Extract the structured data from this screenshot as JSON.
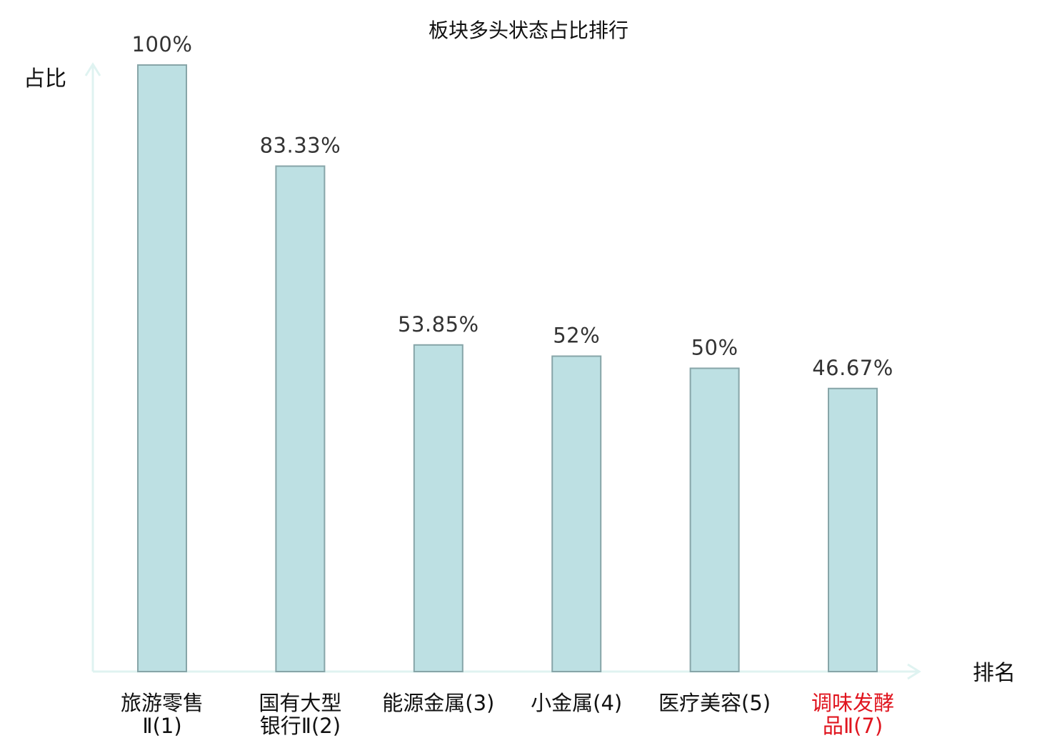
{
  "chart_data": {
    "type": "bar",
    "title": "板块多头状态占比排行",
    "ylabel": "占比",
    "xlabel": "排名",
    "ylim": [
      0,
      100
    ],
    "grid": false,
    "categories": [
      [
        "旅游零售",
        "Ⅱ(1)"
      ],
      [
        "国有大型",
        "银行Ⅱ(2)"
      ],
      [
        "能源金属(3)"
      ],
      [
        "小金属(4)"
      ],
      [
        "医疗美容(5)"
      ],
      [
        "调味发酵",
        "品Ⅱ(7)"
      ]
    ],
    "values": [
      100,
      83.33,
      53.85,
      52,
      50,
      46.67
    ],
    "value_labels": [
      "100%",
      "83.33%",
      "53.85%",
      "52%",
      "50%",
      "46.67%"
    ],
    "highlighted_category_index": 5
  },
  "colors": {
    "bar_fill": "#bde0e3",
    "bar_stroke": "#87a5a8",
    "axis": "#dff3f1",
    "label_text": "#111111",
    "highlight_text": "#e0141e"
  }
}
